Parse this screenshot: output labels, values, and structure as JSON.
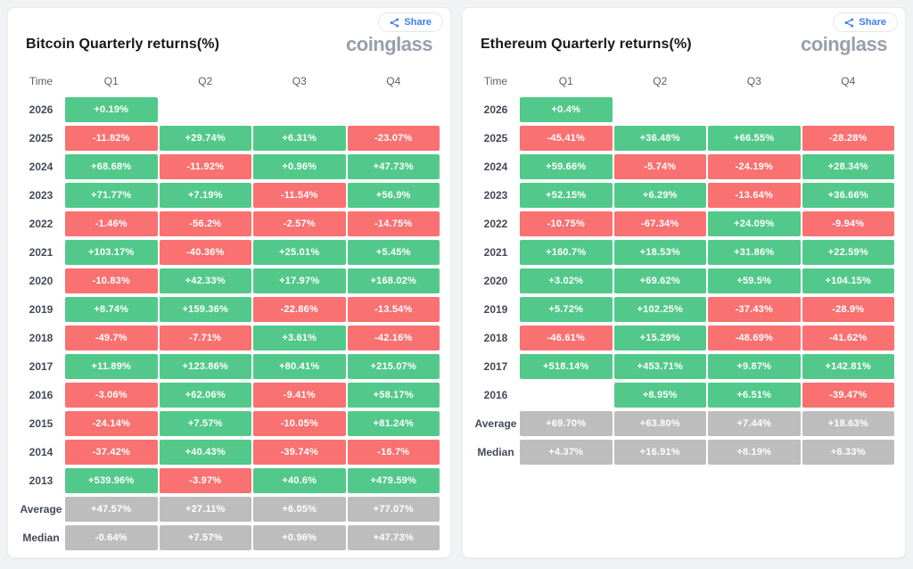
{
  "colors": {
    "background": "#f1f2f4",
    "positive": "#52c98a",
    "negative": "#f97171",
    "summary": "#bdbdbd",
    "accent_blue": "#3b7ef0",
    "logo_gray": "#99a0aa"
  },
  "panels": [
    {
      "share_label": "Share",
      "logo": "coinglass"
    },
    {
      "share_label": "Share",
      "logo": "coinglass"
    }
  ],
  "chart_data": [
    {
      "type": "heatmap",
      "title": "Bitcoin Quarterly returns(%)",
      "columns": [
        "Time",
        "Q1",
        "Q2",
        "Q3",
        "Q4"
      ],
      "color_rule": "green = positive return, red = negative return, gray = summary rows",
      "rows": [
        {
          "label": "2026",
          "values": [
            "+0.19%",
            null,
            null,
            null
          ]
        },
        {
          "label": "2025",
          "values": [
            "-11.82%",
            "+29.74%",
            "+6.31%",
            "-23.07%"
          ]
        },
        {
          "label": "2024",
          "values": [
            "+68.68%",
            "-11.92%",
            "+0.96%",
            "+47.73%"
          ]
        },
        {
          "label": "2023",
          "values": [
            "+71.77%",
            "+7.19%",
            "-11.54%",
            "+56.9%"
          ]
        },
        {
          "label": "2022",
          "values": [
            "-1.46%",
            "-56.2%",
            "-2.57%",
            "-14.75%"
          ]
        },
        {
          "label": "2021",
          "values": [
            "+103.17%",
            "-40.36%",
            "+25.01%",
            "+5.45%"
          ]
        },
        {
          "label": "2020",
          "values": [
            "-10.83%",
            "+42.33%",
            "+17.97%",
            "+168.02%"
          ]
        },
        {
          "label": "2019",
          "values": [
            "+8.74%",
            "+159.36%",
            "-22.86%",
            "-13.54%"
          ]
        },
        {
          "label": "2018",
          "values": [
            "-49.7%",
            "-7.71%",
            "+3.61%",
            "-42.16%"
          ]
        },
        {
          "label": "2017",
          "values": [
            "+11.89%",
            "+123.86%",
            "+80.41%",
            "+215.07%"
          ]
        },
        {
          "label": "2016",
          "values": [
            "-3.06%",
            "+62.06%",
            "-9.41%",
            "+58.17%"
          ]
        },
        {
          "label": "2015",
          "values": [
            "-24.14%",
            "+7.57%",
            "-10.05%",
            "+81.24%"
          ]
        },
        {
          "label": "2014",
          "values": [
            "-37.42%",
            "+40.43%",
            "-39.74%",
            "-16.7%"
          ]
        },
        {
          "label": "2013",
          "values": [
            "+539.96%",
            "-3.97%",
            "+40.6%",
            "+479.59%"
          ]
        },
        {
          "label": "Average",
          "summary": true,
          "values": [
            "+47.57%",
            "+27.11%",
            "+6.05%",
            "+77.07%"
          ]
        },
        {
          "label": "Median",
          "summary": true,
          "values": [
            "-0.64%",
            "+7.57%",
            "+0.96%",
            "+47.73%"
          ]
        }
      ]
    },
    {
      "type": "heatmap",
      "title": "Ethereum Quarterly returns(%)",
      "columns": [
        "Time",
        "Q1",
        "Q2",
        "Q3",
        "Q4"
      ],
      "color_rule": "green = positive return, red = negative return, gray = summary rows",
      "rows": [
        {
          "label": "2026",
          "values": [
            "+0.4%",
            null,
            null,
            null
          ]
        },
        {
          "label": "2025",
          "values": [
            "-45.41%",
            "+36.48%",
            "+66.55%",
            "-28.28%"
          ]
        },
        {
          "label": "2024",
          "values": [
            "+59.66%",
            "-5.74%",
            "-24.19%",
            "+28.34%"
          ]
        },
        {
          "label": "2023",
          "values": [
            "+52.15%",
            "+6.29%",
            "-13.64%",
            "+36.66%"
          ]
        },
        {
          "label": "2022",
          "values": [
            "-10.75%",
            "-67.34%",
            "+24.09%",
            "-9.94%"
          ]
        },
        {
          "label": "2021",
          "values": [
            "+160.7%",
            "+18.53%",
            "+31.86%",
            "+22.59%"
          ]
        },
        {
          "label": "2020",
          "values": [
            "+3.02%",
            "+69.62%",
            "+59.5%",
            "+104.15%"
          ]
        },
        {
          "label": "2019",
          "values": [
            "+5.72%",
            "+102.25%",
            "-37.43%",
            "-28.9%"
          ]
        },
        {
          "label": "2018",
          "values": [
            "-46.61%",
            "+15.29%",
            "-48.69%",
            "-41.62%"
          ]
        },
        {
          "label": "2017",
          "values": [
            "+518.14%",
            "+453.71%",
            "+9.87%",
            "+142.81%"
          ]
        },
        {
          "label": "2016",
          "values": [
            null,
            "+8.95%",
            "+6.51%",
            "-39.47%"
          ]
        },
        {
          "label": "Average",
          "summary": true,
          "values": [
            "+69.70%",
            "+63.80%",
            "+7.44%",
            "+18.63%"
          ]
        },
        {
          "label": "Median",
          "summary": true,
          "values": [
            "+4.37%",
            "+16.91%",
            "+8.19%",
            "+6.33%"
          ]
        }
      ]
    }
  ]
}
